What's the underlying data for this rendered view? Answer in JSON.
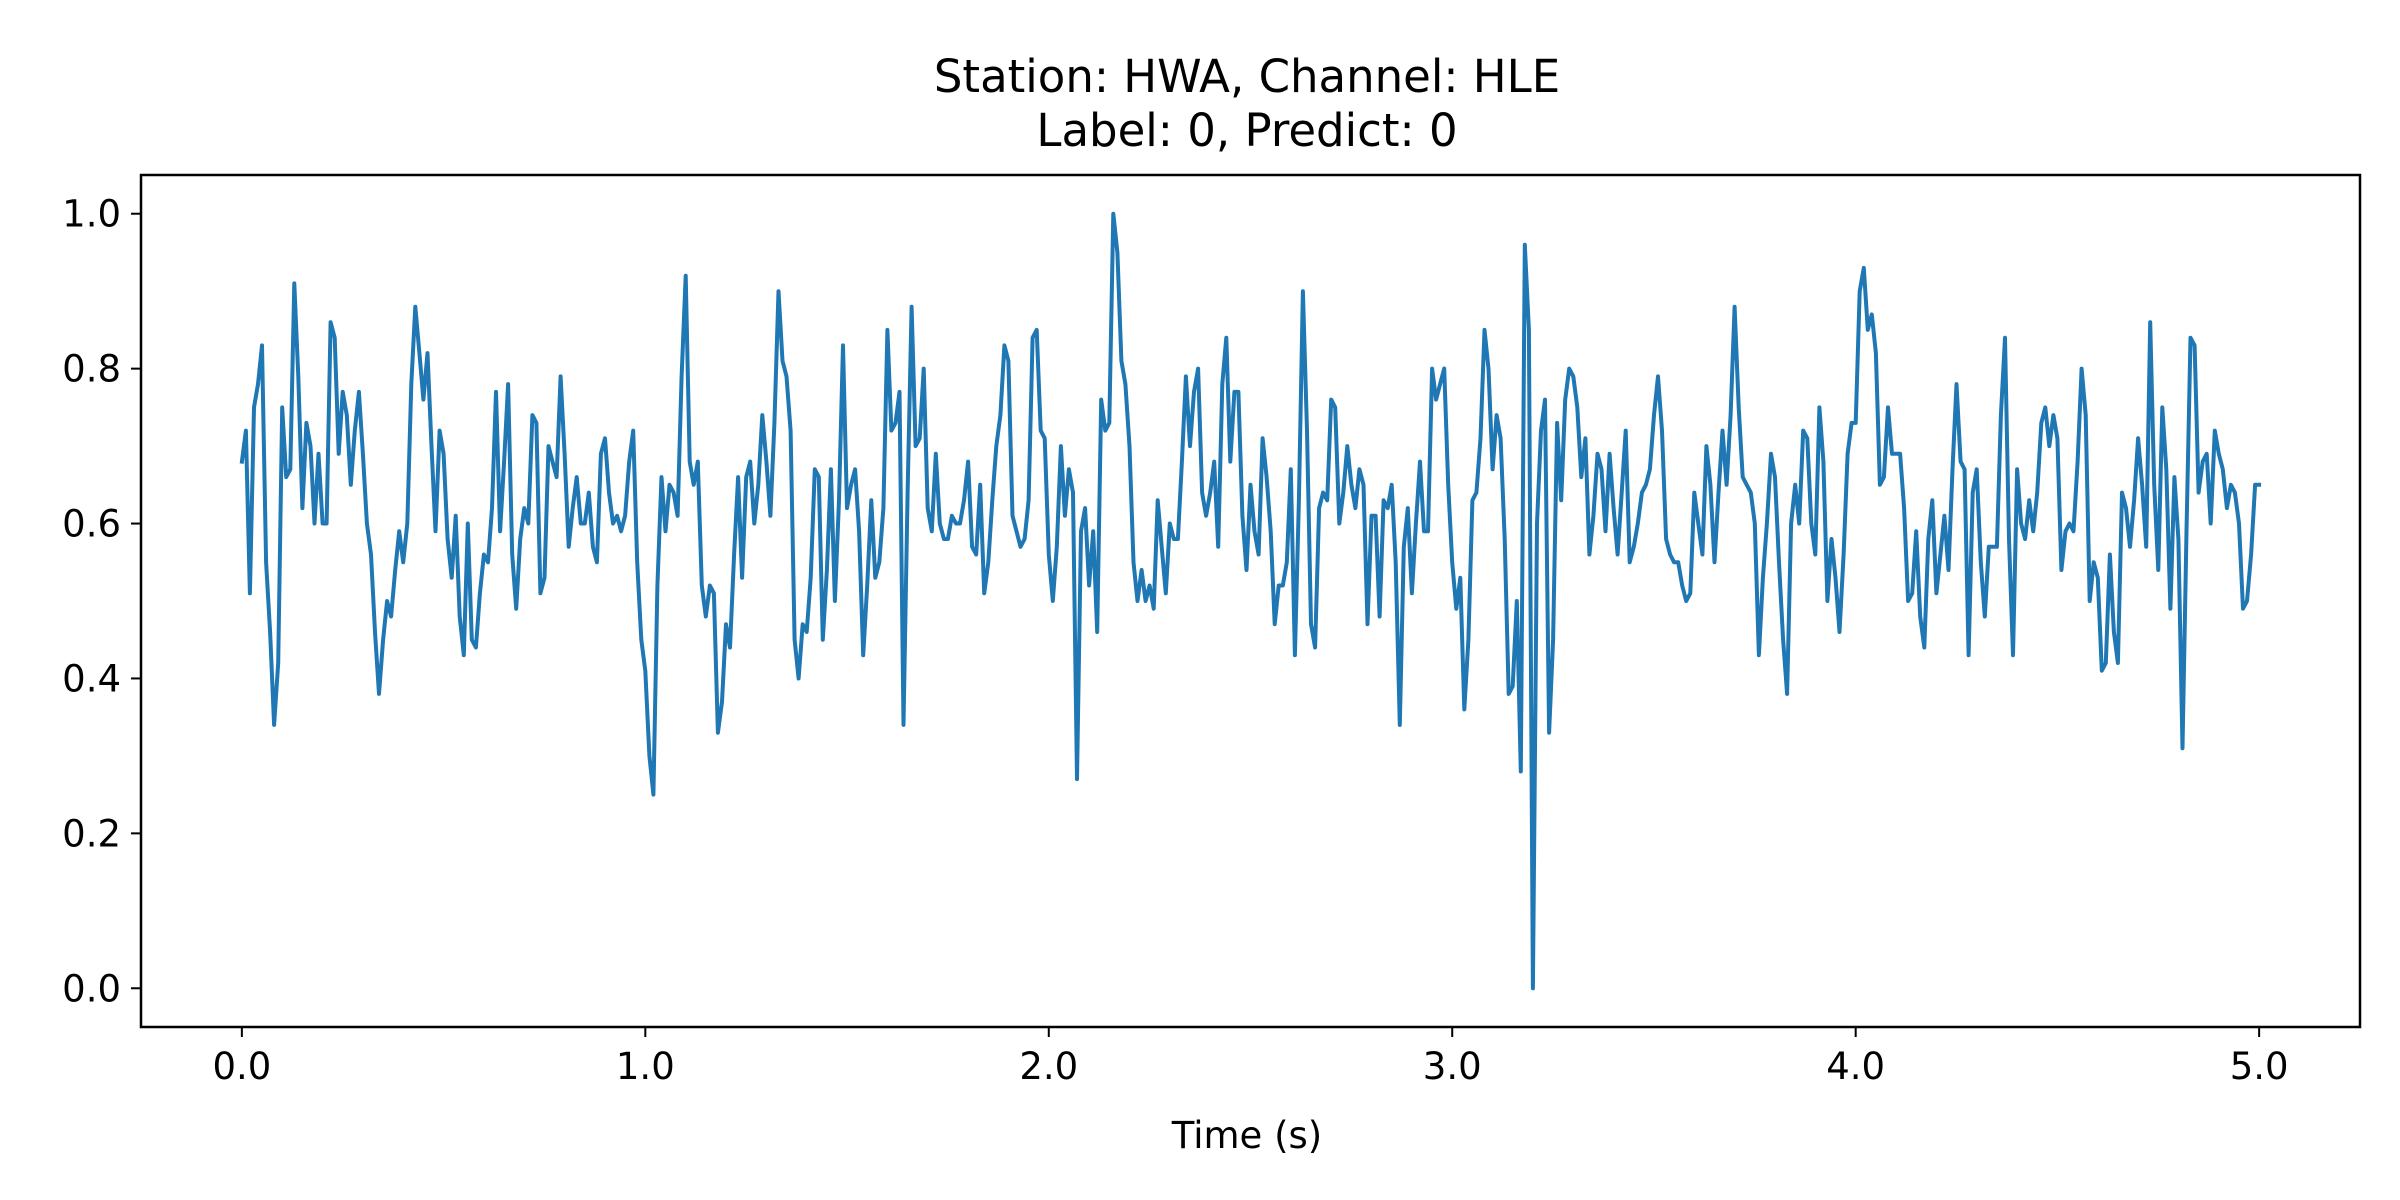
{
  "chart_data": {
    "type": "line",
    "title_line1": "Station: HWA, Channel: HLE",
    "title_line2": "Label: 0, Predict: 0",
    "xlabel": "Time (s)",
    "ylabel": "",
    "xlim": [
      -0.25,
      5.25
    ],
    "ylim": [
      -0.05,
      1.05
    ],
    "x_ticks": [
      0.0,
      1.0,
      2.0,
      3.0,
      4.0,
      5.0
    ],
    "x_tick_labels": [
      "0.0",
      "1.0",
      "2.0",
      "3.0",
      "4.0",
      "5.0"
    ],
    "y_ticks": [
      0.0,
      0.2,
      0.4,
      0.6,
      0.8,
      1.0
    ],
    "y_tick_labels": [
      "0.0",
      "0.2",
      "0.4",
      "0.6",
      "0.8",
      "1.0"
    ],
    "grid": false,
    "legend": "none",
    "line_color": "#1f77b4",
    "series": [
      {
        "x": [
          0.0,
          0.01,
          0.02,
          0.03,
          0.04,
          0.05,
          0.06,
          0.07,
          0.08,
          0.09,
          0.1,
          0.11,
          0.12,
          0.13,
          0.14,
          0.15,
          0.16,
          0.17,
          0.18,
          0.19,
          0.2,
          0.21,
          0.22,
          0.23,
          0.24,
          0.25,
          0.26,
          0.27,
          0.28,
          0.29,
          0.3,
          0.31,
          0.32,
          0.33,
          0.34,
          0.35,
          0.36,
          0.37,
          0.38,
          0.39,
          0.4,
          0.41,
          0.42,
          0.43,
          0.44,
          0.45,
          0.46,
          0.47,
          0.48,
          0.49,
          0.5,
          0.51,
          0.52,
          0.53,
          0.54,
          0.55,
          0.56,
          0.57,
          0.58,
          0.59,
          0.6,
          0.61,
          0.62,
          0.63,
          0.64,
          0.65,
          0.66,
          0.67,
          0.68,
          0.69,
          0.7,
          0.71,
          0.72,
          0.73,
          0.74,
          0.75,
          0.76,
          0.77,
          0.78,
          0.79,
          0.8,
          0.81,
          0.82,
          0.83,
          0.84,
          0.85,
          0.86,
          0.87,
          0.88,
          0.89,
          0.9,
          0.91,
          0.92,
          0.93,
          0.94,
          0.95,
          0.96,
          0.97,
          0.98,
          0.99,
          1.0,
          1.01,
          1.02,
          1.03,
          1.04,
          1.05,
          1.06,
          1.07,
          1.08,
          1.09,
          1.1,
          1.11,
          1.12,
          1.13,
          1.14,
          1.15,
          1.16,
          1.17,
          1.18,
          1.19,
          1.2,
          1.21,
          1.22,
          1.23,
          1.24,
          1.25,
          1.26,
          1.27,
          1.28,
          1.29,
          1.3,
          1.31,
          1.32,
          1.33,
          1.34,
          1.35,
          1.36,
          1.37,
          1.38,
          1.39,
          1.4,
          1.41,
          1.42,
          1.43,
          1.44,
          1.45,
          1.46,
          1.47,
          1.48,
          1.49,
          1.5,
          1.51,
          1.52,
          1.53,
          1.54,
          1.55,
          1.56,
          1.57,
          1.58,
          1.59,
          1.6,
          1.61,
          1.62,
          1.63,
          1.64,
          1.65,
          1.66,
          1.67,
          1.68,
          1.69,
          1.7,
          1.71,
          1.72,
          1.73,
          1.74,
          1.75,
          1.76,
          1.77,
          1.78,
          1.79,
          1.8,
          1.81,
          1.82,
          1.83,
          1.84,
          1.85,
          1.86,
          1.87,
          1.88,
          1.89,
          1.9,
          1.91,
          1.92,
          1.93,
          1.94,
          1.95,
          1.96,
          1.97,
          1.98,
          1.99,
          2.0,
          2.01,
          2.02,
          2.03,
          2.04,
          2.05,
          2.06,
          2.07,
          2.08,
          2.09,
          2.1,
          2.11,
          2.12,
          2.13,
          2.14,
          2.15,
          2.16,
          2.17,
          2.18,
          2.19,
          2.2,
          2.21,
          2.22,
          2.23,
          2.24,
          2.25,
          2.26,
          2.27,
          2.28,
          2.29,
          2.3,
          2.31,
          2.32,
          2.33,
          2.34,
          2.35,
          2.36,
          2.37,
          2.38,
          2.39,
          2.4,
          2.41,
          2.42,
          2.43,
          2.44,
          2.45,
          2.46,
          2.47,
          2.48,
          2.49,
          2.5,
          2.51,
          2.52,
          2.53,
          2.54,
          2.55,
          2.56,
          2.57,
          2.58,
          2.59,
          2.6,
          2.61,
          2.62,
          2.63,
          2.64,
          2.65,
          2.66,
          2.67,
          2.68,
          2.69,
          2.7,
          2.71,
          2.72,
          2.73,
          2.74,
          2.75,
          2.76,
          2.77,
          2.78,
          2.79,
          2.8,
          2.81,
          2.82,
          2.83,
          2.84,
          2.85,
          2.86,
          2.87,
          2.88,
          2.89,
          2.9,
          2.91,
          2.92,
          2.93,
          2.94,
          2.95,
          2.96,
          2.97,
          2.98,
          2.99,
          3.0,
          3.01,
          3.02,
          3.03,
          3.04,
          3.05,
          3.06,
          3.07,
          3.08,
          3.09,
          3.1,
          3.11,
          3.12,
          3.13,
          3.14,
          3.15,
          3.16,
          3.17,
          3.18,
          3.19,
          3.2,
          3.21,
          3.22,
          3.23,
          3.24,
          3.25,
          3.26,
          3.27,
          3.28,
          3.29,
          3.3,
          3.31,
          3.32,
          3.33,
          3.34,
          3.35,
          3.36,
          3.37,
          3.38,
          3.39,
          3.4,
          3.41,
          3.42,
          3.43,
          3.44,
          3.45,
          3.46,
          3.47,
          3.48,
          3.49,
          3.5,
          3.51,
          3.52,
          3.53,
          3.54,
          3.55,
          3.56,
          3.57,
          3.58,
          3.59,
          3.6,
          3.61,
          3.62,
          3.63,
          3.64,
          3.65,
          3.66,
          3.67,
          3.68,
          3.69,
          3.7,
          3.71,
          3.72,
          3.73,
          3.74,
          3.75,
          3.76,
          3.77,
          3.78,
          3.79,
          3.8,
          3.81,
          3.82,
          3.83,
          3.84,
          3.85,
          3.86,
          3.87,
          3.88,
          3.89,
          3.9,
          3.91,
          3.92,
          3.93,
          3.94,
          3.95,
          3.96,
          3.97,
          3.98,
          3.99,
          4.0,
          4.01,
          4.02,
          4.03,
          4.04,
          4.05,
          4.06,
          4.07,
          4.08,
          4.09,
          4.1,
          4.11,
          4.12,
          4.13,
          4.14,
          4.15,
          4.16,
          4.17,
          4.18,
          4.19,
          4.2,
          4.21,
          4.22,
          4.23,
          4.24,
          4.25,
          4.26,
          4.27,
          4.28,
          4.29,
          4.3,
          4.31,
          4.32,
          4.33,
          4.34,
          4.35,
          4.36,
          4.37,
          4.38,
          4.39,
          4.4,
          4.41,
          4.42,
          4.43,
          4.44,
          4.45,
          4.46,
          4.47,
          4.48,
          4.49,
          4.5,
          4.51,
          4.52,
          4.53,
          4.54,
          4.55,
          4.56,
          4.57,
          4.58,
          4.59,
          4.6,
          4.61,
          4.62,
          4.63,
          4.64,
          4.65,
          4.66,
          4.67,
          4.68,
          4.69,
          4.7,
          4.71,
          4.72,
          4.73,
          4.74,
          4.75,
          4.76,
          4.77,
          4.78,
          4.79,
          4.8,
          4.81,
          4.82,
          4.83,
          4.84,
          4.85,
          4.86,
          4.87,
          4.88,
          4.89,
          4.9,
          4.91,
          4.92,
          4.93,
          4.94,
          4.95,
          4.96,
          4.97,
          4.98,
          4.99,
          5.0
        ],
        "y": [
          0.68,
          0.72,
          0.51,
          0.75,
          0.78,
          0.83,
          0.55,
          0.46,
          0.34,
          0.42,
          0.75,
          0.66,
          0.67,
          0.91,
          0.79,
          0.62,
          0.73,
          0.7,
          0.6,
          0.69,
          0.6,
          0.6,
          0.86,
          0.84,
          0.69,
          0.77,
          0.74,
          0.65,
          0.72,
          0.77,
          0.69,
          0.6,
          0.56,
          0.46,
          0.38,
          0.45,
          0.5,
          0.48,
          0.54,
          0.59,
          0.55,
          0.6,
          0.78,
          0.88,
          0.82,
          0.76,
          0.82,
          0.7,
          0.59,
          0.72,
          0.69,
          0.58,
          0.53,
          0.61,
          0.48,
          0.43,
          0.6,
          0.45,
          0.44,
          0.51,
          0.56,
          0.55,
          0.62,
          0.77,
          0.59,
          0.68,
          0.78,
          0.56,
          0.49,
          0.58,
          0.62,
          0.6,
          0.74,
          0.73,
          0.51,
          0.53,
          0.7,
          0.68,
          0.66,
          0.79,
          0.69,
          0.57,
          0.62,
          0.66,
          0.6,
          0.6,
          0.64,
          0.57,
          0.55,
          0.69,
          0.71,
          0.64,
          0.6,
          0.61,
          0.59,
          0.61,
          0.68,
          0.72,
          0.55,
          0.45,
          0.41,
          0.3,
          0.25,
          0.52,
          0.66,
          0.59,
          0.65,
          0.64,
          0.61,
          0.79,
          0.92,
          0.68,
          0.65,
          0.68,
          0.52,
          0.48,
          0.52,
          0.51,
          0.33,
          0.37,
          0.47,
          0.44,
          0.56,
          0.66,
          0.53,
          0.66,
          0.68,
          0.6,
          0.65,
          0.74,
          0.68,
          0.61,
          0.73,
          0.9,
          0.81,
          0.79,
          0.72,
          0.45,
          0.4,
          0.47,
          0.46,
          0.53,
          0.67,
          0.66,
          0.45,
          0.54,
          0.67,
          0.5,
          0.63,
          0.83,
          0.62,
          0.65,
          0.67,
          0.59,
          0.43,
          0.52,
          0.63,
          0.53,
          0.55,
          0.62,
          0.85,
          0.72,
          0.73,
          0.77,
          0.34,
          0.64,
          0.88,
          0.7,
          0.71,
          0.8,
          0.62,
          0.59,
          0.69,
          0.6,
          0.58,
          0.58,
          0.61,
          0.6,
          0.6,
          0.63,
          0.68,
          0.57,
          0.56,
          0.65,
          0.51,
          0.55,
          0.63,
          0.7,
          0.74,
          0.83,
          0.81,
          0.61,
          0.59,
          0.57,
          0.58,
          0.63,
          0.84,
          0.85,
          0.72,
          0.71,
          0.56,
          0.5,
          0.57,
          0.7,
          0.61,
          0.67,
          0.64,
          0.27,
          0.59,
          0.62,
          0.52,
          0.59,
          0.46,
          0.76,
          0.72,
          0.73,
          1.0,
          0.95,
          0.81,
          0.78,
          0.7,
          0.55,
          0.5,
          0.54,
          0.5,
          0.52,
          0.49,
          0.63,
          0.57,
          0.51,
          0.6,
          0.58,
          0.58,
          0.68,
          0.79,
          0.7,
          0.77,
          0.8,
          0.64,
          0.61,
          0.64,
          0.68,
          0.57,
          0.78,
          0.84,
          0.68,
          0.77,
          0.77,
          0.61,
          0.54,
          0.65,
          0.59,
          0.56,
          0.71,
          0.66,
          0.59,
          0.47,
          0.52,
          0.52,
          0.55,
          0.67,
          0.43,
          0.63,
          0.9,
          0.72,
          0.47,
          0.44,
          0.62,
          0.64,
          0.63,
          0.76,
          0.75,
          0.6,
          0.64,
          0.7,
          0.65,
          0.62,
          0.67,
          0.65,
          0.47,
          0.61,
          0.61,
          0.48,
          0.63,
          0.62,
          0.65,
          0.55,
          0.34,
          0.57,
          0.62,
          0.51,
          0.6,
          0.68,
          0.59,
          0.59,
          0.8,
          0.76,
          0.78,
          0.8,
          0.65,
          0.55,
          0.49,
          0.53,
          0.36,
          0.45,
          0.63,
          0.64,
          0.71,
          0.85,
          0.8,
          0.67,
          0.74,
          0.71,
          0.58,
          0.38,
          0.39,
          0.5,
          0.28,
          0.96,
          0.85,
          0.0,
          0.6,
          0.72,
          0.76,
          0.33,
          0.45,
          0.73,
          0.63,
          0.76,
          0.8,
          0.79,
          0.75,
          0.66,
          0.71,
          0.56,
          0.61,
          0.69,
          0.67,
          0.59,
          0.69,
          0.62,
          0.56,
          0.64,
          0.72,
          0.55,
          0.57,
          0.6,
          0.64,
          0.65,
          0.67,
          0.74,
          0.79,
          0.72,
          0.58,
          0.56,
          0.55,
          0.55,
          0.52,
          0.5,
          0.51,
          0.64,
          0.6,
          0.56,
          0.7,
          0.65,
          0.55,
          0.64,
          0.72,
          0.65,
          0.74,
          0.88,
          0.75,
          0.66,
          0.65,
          0.64,
          0.6,
          0.43,
          0.53,
          0.6,
          0.69,
          0.66,
          0.55,
          0.45,
          0.38,
          0.6,
          0.65,
          0.6,
          0.72,
          0.71,
          0.6,
          0.56,
          0.75,
          0.68,
          0.5,
          0.58,
          0.53,
          0.46,
          0.56,
          0.69,
          0.73,
          0.73,
          0.9,
          0.93,
          0.85,
          0.87,
          0.82,
          0.65,
          0.66,
          0.75,
          0.69,
          0.69,
          0.69,
          0.62,
          0.5,
          0.51,
          0.59,
          0.48,
          0.44,
          0.58,
          0.63,
          0.51,
          0.56,
          0.61,
          0.54,
          0.67,
          0.78,
          0.68,
          0.67,
          0.43,
          0.64,
          0.67,
          0.55,
          0.48,
          0.57,
          0.57,
          0.57,
          0.74,
          0.84,
          0.58,
          0.43,
          0.67,
          0.6,
          0.58,
          0.63,
          0.59,
          0.64,
          0.73,
          0.75,
          0.7,
          0.74,
          0.71,
          0.54,
          0.59,
          0.6,
          0.59,
          0.68,
          0.8,
          0.74,
          0.5,
          0.55,
          0.53,
          0.41,
          0.42,
          0.56,
          0.46,
          0.42,
          0.64,
          0.62,
          0.57,
          0.63,
          0.71,
          0.65,
          0.57,
          0.86,
          0.65,
          0.54,
          0.75,
          0.67,
          0.49,
          0.66,
          0.58,
          0.31,
          0.59,
          0.84,
          0.83,
          0.64,
          0.68,
          0.69,
          0.6,
          0.72,
          0.69,
          0.67,
          0.62,
          0.65,
          0.64,
          0.6,
          0.49,
          0.5,
          0.56,
          0.65,
          0.65
        ]
      }
    ]
  }
}
